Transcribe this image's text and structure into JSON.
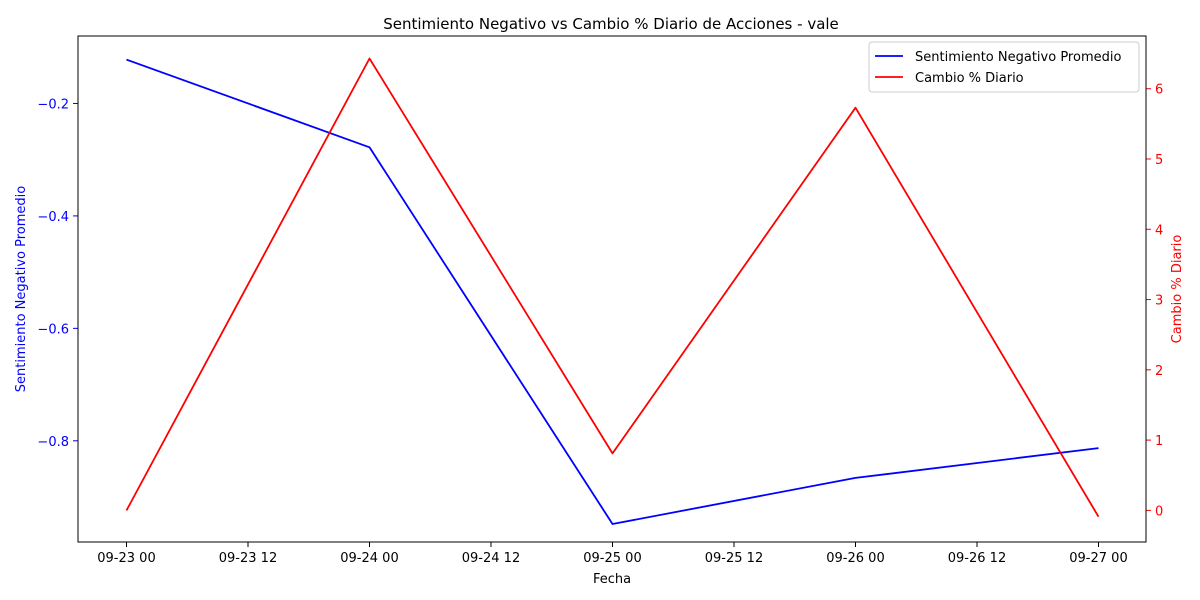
{
  "chart_data": {
    "type": "line",
    "title": "Sentimiento Negativo vs Cambio % Diario de Acciones - vale",
    "xlabel": "Fecha",
    "ylabel_left": "Sentimiento Negativo Promedio",
    "ylabel_right": "Cambio % Diario",
    "x": [
      "09-23 00",
      "09-24 00",
      "09-25 00",
      "09-26 00",
      "09-27 00"
    ],
    "x_ticks": [
      "09-23 00",
      "09-23 12",
      "09-24 00",
      "09-24 12",
      "09-25 00",
      "09-25 12",
      "09-26 00",
      "09-26 12",
      "09-27 00"
    ],
    "series": [
      {
        "name": "Sentimiento Negativo Promedio",
        "axis": "left",
        "color": "#0000ff",
        "values": [
          -0.122,
          -0.278,
          -0.948,
          -0.866,
          -0.813
        ]
      },
      {
        "name": "Cambio % Diario",
        "axis": "right",
        "color": "#ff0000",
        "values": [
          0.0,
          6.43,
          0.81,
          5.73,
          -0.09
        ]
      }
    ],
    "ylim_left": [
      -0.98,
      -0.08
    ],
    "ylim_right": [
      -0.45,
      6.75
    ],
    "yticks_left": [
      -0.2,
      -0.4,
      -0.6,
      -0.8
    ],
    "yticks_right": [
      0,
      1,
      2,
      3,
      4,
      5,
      6
    ],
    "yticks_left_labels": [
      "−0.2",
      "−0.4",
      "−0.6",
      "−0.8"
    ],
    "yticks_right_labels": [
      "0",
      "1",
      "2",
      "3",
      "4",
      "5",
      "6"
    ],
    "grid": false,
    "legend_position": "top-right"
  }
}
